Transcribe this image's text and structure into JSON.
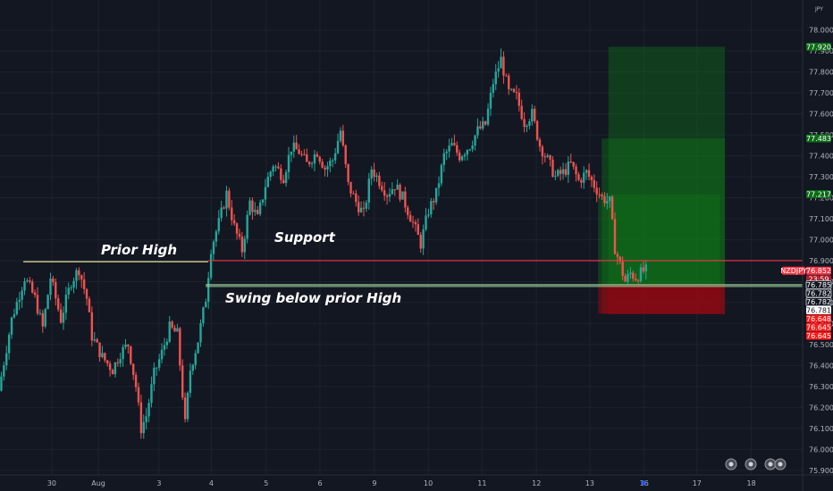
{
  "chart_data": {
    "type": "candlestick",
    "symbol": "NZDJPY",
    "currency": "JPY",
    "countdown": "23:59",
    "x_range": [
      0,
      155
    ],
    "y_range": [
      75.878,
      78.143
    ],
    "y_ticks": [
      75.9,
      76.0,
      76.1,
      76.2,
      76.3,
      76.4,
      76.5,
      76.6,
      76.7,
      76.8,
      76.9,
      77.0,
      77.1,
      77.2,
      77.3,
      77.4,
      77.5,
      77.6,
      77.7,
      77.8,
      77.9,
      78.0
    ],
    "y_tick_labels": [
      "75.900",
      "76.000",
      "76.100",
      "76.200",
      "76.300",
      "76.400",
      "76.500",
      "76.600",
      "76.700",
      "76.800",
      "76.900",
      "77.000",
      "77.100",
      "77.200",
      "77.300",
      "77.400",
      "77.500",
      "77.600",
      "77.700",
      "77.800",
      "77.900",
      "78.000"
    ],
    "x_ticks": [
      {
        "label": "30",
        "x": 10
      },
      {
        "label": "Aug",
        "x": 19
      },
      {
        "label": "3",
        "x": 30.7
      },
      {
        "label": "4",
        "x": 40.8
      },
      {
        "label": "5",
        "x": 51.4
      },
      {
        "label": "6",
        "x": 61.8
      },
      {
        "label": "9",
        "x": 72.3
      },
      {
        "label": "10",
        "x": 82.7
      },
      {
        "label": "11",
        "x": 93.1
      },
      {
        "label": "12",
        "x": 103.6
      },
      {
        "label": "13",
        "x": 113.9
      },
      {
        "label": "16",
        "x": 124.4
      },
      {
        "label": "17",
        "x": 134.6
      },
      {
        "label": "18",
        "x": 145.1
      }
    ],
    "path": [
      [
        0,
        76.28
      ],
      [
        2.5,
        76.62
      ],
      [
        5,
        76.82
      ],
      [
        7,
        76.72
      ],
      [
        8.5,
        76.58
      ],
      [
        10,
        76.82
      ],
      [
        12,
        76.62
      ],
      [
        14,
        76.8
      ],
      [
        15.5,
        76.86
      ],
      [
        17,
        76.72
      ],
      [
        18,
        76.54
      ],
      [
        20,
        76.44
      ],
      [
        22,
        76.38
      ],
      [
        23.5,
        76.46
      ],
      [
        25,
        76.5
      ],
      [
        26.5,
        76.3
      ],
      [
        27.5,
        76.1
      ],
      [
        28.5,
        76.16
      ],
      [
        30,
        76.36
      ],
      [
        31.5,
        76.46
      ],
      [
        33,
        76.58
      ],
      [
        34.5,
        76.55
      ],
      [
        36,
        76.12
      ],
      [
        37,
        76.38
      ],
      [
        38.5,
        76.52
      ],
      [
        40,
        76.72
      ],
      [
        41,
        76.96
      ],
      [
        42.5,
        77.08
      ],
      [
        44,
        77.22
      ],
      [
        45.5,
        77.06
      ],
      [
        47,
        76.95
      ],
      [
        48.5,
        77.18
      ],
      [
        50,
        77.1
      ],
      [
        51.5,
        77.26
      ],
      [
        53,
        77.36
      ],
      [
        55,
        77.3
      ],
      [
        56.5,
        77.44
      ],
      [
        58,
        77.42
      ],
      [
        59.5,
        77.36
      ],
      [
        61.5,
        77.42
      ],
      [
        63,
        77.34
      ],
      [
        64.5,
        77.38
      ],
      [
        66,
        77.52
      ],
      [
        67.5,
        77.26
      ],
      [
        69,
        77.18
      ],
      [
        70.5,
        77.12
      ],
      [
        72,
        77.34
      ],
      [
        73.5,
        77.28
      ],
      [
        75,
        77.22
      ],
      [
        76.5,
        77.26
      ],
      [
        78,
        77.2
      ],
      [
        80,
        77.08
      ],
      [
        81.5,
        76.98
      ],
      [
        83,
        77.14
      ],
      [
        84.5,
        77.22
      ],
      [
        86,
        77.4
      ],
      [
        87.5,
        77.45
      ],
      [
        89,
        77.4
      ],
      [
        91,
        77.45
      ],
      [
        92.5,
        77.52
      ],
      [
        94,
        77.55
      ],
      [
        95.5,
        77.75
      ],
      [
        97,
        77.86
      ],
      [
        98.5,
        77.7
      ],
      [
        100,
        77.68
      ],
      [
        101.5,
        77.56
      ],
      [
        103,
        77.6
      ],
      [
        104.5,
        77.45
      ],
      [
        106,
        77.38
      ],
      [
        107.5,
        77.3
      ],
      [
        109,
        77.32
      ],
      [
        110.5,
        77.36
      ],
      [
        112,
        77.28
      ],
      [
        113.5,
        77.32
      ],
      [
        115,
        77.26
      ],
      [
        116.5,
        77.2
      ],
      [
        118,
        77.18
      ],
      [
        119,
        76.96
      ],
      [
        120,
        76.88
      ],
      [
        121,
        76.8
      ],
      [
        122,
        76.84
      ],
      [
        123,
        76.82
      ],
      [
        124.6,
        76.852
      ]
    ],
    "series": [
      {
        "name": "Prior High",
        "type": "hline",
        "x": [
          4.5,
          40.2
        ],
        "y": 76.895
      },
      {
        "name": "Support",
        "type": "hline",
        "x": [
          40.2,
          155
        ],
        "y": 76.9
      },
      {
        "name": "Swing below prior High",
        "type": "hline",
        "x": [
          39.7,
          155
        ],
        "y": 76.785
      }
    ],
    "positions": [
      {
        "type": "long",
        "x": [
          117.5,
          140
        ],
        "entry": 76.785,
        "target": 77.92,
        "stop": 76.645
      },
      {
        "type": "long",
        "x": [
          116.2,
          140
        ],
        "entry": 76.782,
        "target": 77.483,
        "stop": 76.645
      },
      {
        "type": "long",
        "x": [
          115.5,
          139
        ],
        "entry": 76.782,
        "target": 77.217,
        "stop": 76.648
      }
    ],
    "annotations": [
      {
        "text": "Prior High",
        "x": 19.5,
        "y": 76.93
      },
      {
        "text": "Support",
        "x": 53,
        "y": 76.99
      },
      {
        "text": "Swing below prior High",
        "x": 43.5,
        "y": 76.7
      }
    ],
    "price_labels": [
      {
        "text": "77.920",
        "value": 77.92,
        "color": "#0b6b16"
      },
      {
        "text": "77.483",
        "value": 77.483,
        "color": "#0b6b16"
      },
      {
        "text": "77.217",
        "value": 77.217,
        "color": "#0b6b16"
      },
      {
        "text": "76.852",
        "value": 76.852,
        "color": "#f23645",
        "kind": "current"
      },
      {
        "text": "76.785",
        "value": 76.785,
        "color": "#d1d4dc",
        "kind": "light"
      },
      {
        "text": "76.782",
        "value": 76.782,
        "color": "#d1d4dc",
        "kind": "light"
      },
      {
        "text": "76.782",
        "value": 76.782,
        "color": "#d1d4dc",
        "kind": "light"
      },
      {
        "text": "76.781",
        "value": 76.781,
        "color": "#ffffff",
        "kind": "cross"
      },
      {
        "text": "76.648",
        "value": 76.648,
        "color": "#ff1a1a"
      },
      {
        "text": "76.645",
        "value": 76.645,
        "color": "#ff1a1a"
      },
      {
        "text": "76.645",
        "value": 76.645,
        "color": "#ff1a1a"
      }
    ],
    "colors": {
      "background": "#131722",
      "bull": "#26a69a",
      "bear": "#ef5350",
      "prior_high_line": "#e8e69a",
      "support_line": "#f23645",
      "swing_line": "#9ad19a",
      "target_zone": "#0f7a18",
      "stop_zone": "#8c0b14",
      "axis_text": "#b2b5be"
    },
    "grid": true,
    "legend": "none"
  }
}
